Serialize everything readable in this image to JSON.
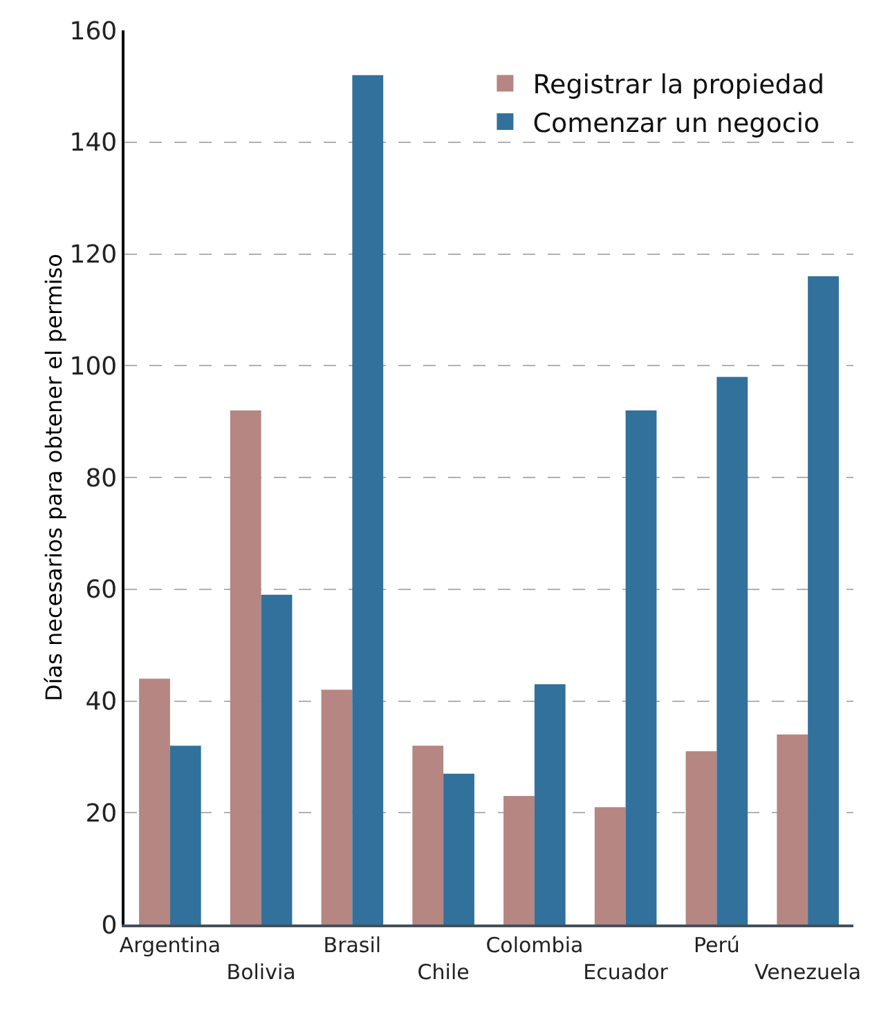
{
  "chart_data": {
    "type": "bar",
    "ylabel": "Días necesarios para obtener el permiso",
    "categories": [
      "Argentina",
      "Bolivia",
      "Brasil",
      "Chile",
      "Colombia",
      "Ecuador",
      "Perú",
      "Venezuela"
    ],
    "series": [
      {
        "name": "Registrar la propiedad",
        "color": "#b58682",
        "values": [
          44,
          92,
          42,
          32,
          23,
          21,
          31,
          34
        ]
      },
      {
        "name": "Comenzar un negocio",
        "color": "#31719b",
        "values": [
          32,
          59,
          152,
          27,
          43,
          92,
          98,
          116
        ]
      }
    ],
    "ylim": [
      0,
      160
    ],
    "yticks": [
      0,
      20,
      40,
      60,
      80,
      100,
      120,
      140,
      160
    ],
    "grid": "y",
    "legend": "top right"
  }
}
